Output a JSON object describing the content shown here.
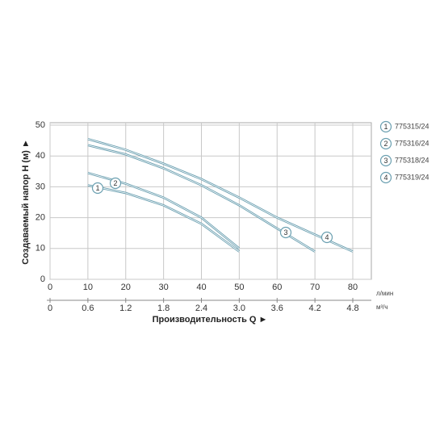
{
  "chart_data": {
    "type": "line",
    "x_label": "Производительность Q ►",
    "y_label": "Создаваемый напор H (м) ►",
    "x_unit": "л/мин",
    "x2_unit": "м³/ч",
    "xlim": [
      0,
      80
    ],
    "xticks": [
      0,
      10,
      20,
      30,
      40,
      50,
      60,
      70,
      80
    ],
    "x2lim": [
      0,
      4.8
    ],
    "x2ticks": [
      0,
      0.6,
      1.2,
      1.8,
      2.4,
      {
        "value": 3,
        "label": "3.0"
      },
      3.6,
      4.2,
      4.8
    ],
    "ylim": [
      0,
      50
    ],
    "yticks": [
      0,
      10,
      20,
      30,
      40,
      50
    ],
    "grid": true,
    "legend": "right",
    "series": [
      {
        "label": "1",
        "name": "775315/24",
        "color": "#6a9fb0",
        "x": [
          10,
          20,
          30,
          40,
          50
        ],
        "values": [
          30.5,
          28,
          24,
          18,
          9
        ]
      },
      {
        "label": "2",
        "name": "775316/24",
        "color": "#6a9fb0",
        "x": [
          10,
          20,
          30,
          40,
          50
        ],
        "values": [
          34.5,
          31,
          26.5,
          20,
          10
        ]
      },
      {
        "label": "3",
        "name": "775318/24",
        "color": "#6a9fb0",
        "x": [
          10,
          20,
          30,
          40,
          50,
          60,
          70
        ],
        "values": [
          43.5,
          40.5,
          36,
          30.5,
          24,
          16.5,
          9
        ]
      },
      {
        "label": "4",
        "name": "775319/24",
        "color": "#6a9fb0",
        "x": [
          10,
          20,
          30,
          40,
          50,
          60,
          70,
          80
        ],
        "values": [
          45.5,
          42,
          37.5,
          32.5,
          26.5,
          20,
          14.5,
          9
        ]
      }
    ]
  }
}
